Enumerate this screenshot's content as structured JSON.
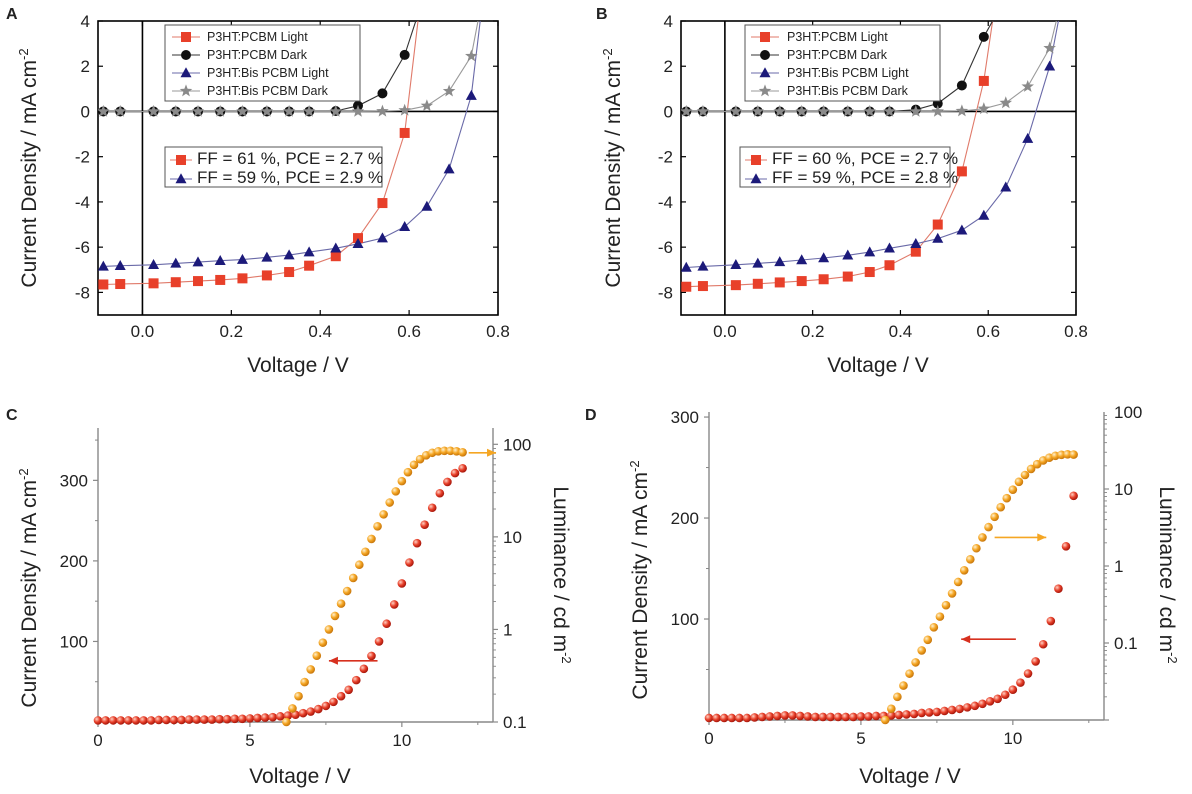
{
  "chart_data": [
    {
      "id": "A",
      "panel_label": "A",
      "type": "line",
      "title": "",
      "xlabel": "Voltage / V",
      "ylabel": "Current Density / mA cm",
      "ylabel_sup": "-2",
      "xlim": [
        -0.1,
        0.8
      ],
      "ylim": [
        -9,
        4
      ],
      "xticks": [
        0.0,
        0.2,
        0.4,
        0.6,
        0.8
      ],
      "xtick_labels": [
        "0.0",
        "0.2",
        "0.4",
        "0.6",
        "0.8"
      ],
      "yticks": [
        -8,
        -6,
        -4,
        -2,
        0,
        2,
        4
      ],
      "ytick_labels": [
        "-8",
        "-6",
        "-4",
        "-2",
        "0",
        "2",
        "4"
      ],
      "series": [
        {
          "name": "P3HT:PCBM Light",
          "marker": "square",
          "color": "#e8402a",
          "line_color": "#e07a6a",
          "x": [
            -0.088,
            -0.05,
            0.025,
            0.075,
            0.125,
            0.175,
            0.225,
            0.28,
            0.33,
            0.375,
            0.435,
            0.485,
            0.54,
            0.59,
            0.62
          ],
          "y": [
            -7.65,
            -7.63,
            -7.6,
            -7.55,
            -7.5,
            -7.45,
            -7.38,
            -7.25,
            -7.1,
            -6.82,
            -6.4,
            -5.6,
            -4.05,
            -0.95,
            4.0
          ]
        },
        {
          "name": "P3HT:PCBM Dark",
          "marker": "circle",
          "color": "#111111",
          "line_color": "#333333",
          "x": [
            -0.088,
            -0.05,
            0.025,
            0.075,
            0.125,
            0.175,
            0.225,
            0.28,
            0.33,
            0.375,
            0.435,
            0.485,
            0.54,
            0.59,
            0.615
          ],
          "y": [
            0,
            0,
            0,
            0,
            0,
            0,
            0,
            0,
            0,
            0,
            0.02,
            0.25,
            0.8,
            2.5,
            4.0
          ]
        },
        {
          "name": "P3HT:Bis PCBM Light",
          "marker": "triangle",
          "color": "#1c1a7a",
          "line_color": "#6a6aa8",
          "x": [
            -0.088,
            -0.05,
            0.025,
            0.075,
            0.125,
            0.175,
            0.225,
            0.28,
            0.33,
            0.375,
            0.435,
            0.485,
            0.54,
            0.59,
            0.64,
            0.69,
            0.74,
            0.76
          ],
          "y": [
            -6.85,
            -6.82,
            -6.78,
            -6.72,
            -6.66,
            -6.6,
            -6.55,
            -6.45,
            -6.35,
            -6.22,
            -6.05,
            -5.85,
            -5.6,
            -5.1,
            -4.2,
            -2.55,
            0.7,
            4.0
          ]
        },
        {
          "name": "P3HT:Bis PCBM Dark",
          "marker": "star",
          "color": "#8a8a8a",
          "line_color": "#9a9a9a",
          "x": [
            -0.088,
            -0.05,
            0.025,
            0.075,
            0.125,
            0.175,
            0.225,
            0.28,
            0.33,
            0.375,
            0.435,
            0.485,
            0.54,
            0.59,
            0.64,
            0.69,
            0.74,
            0.755
          ],
          "y": [
            0,
            0,
            0,
            0,
            0,
            0,
            0,
            0,
            0,
            0,
            0,
            0,
            0.01,
            0.05,
            0.25,
            0.9,
            2.45,
            4.0
          ]
        }
      ],
      "annotations": [
        "FF = 61 %, PCE = 2.7 %",
        "FF = 59 %, PCE = 2.9 %"
      ]
    },
    {
      "id": "B",
      "panel_label": "B",
      "type": "line",
      "title": "",
      "xlabel": "Voltage / V",
      "ylabel": "Current Density / mA cm",
      "ylabel_sup": "-2",
      "xlim": [
        -0.1,
        0.8
      ],
      "ylim": [
        -9,
        4
      ],
      "xticks": [
        0.0,
        0.2,
        0.4,
        0.6,
        0.8
      ],
      "xtick_labels": [
        "0.0",
        "0.2",
        "0.4",
        "0.6",
        "0.8"
      ],
      "yticks": [
        -8,
        -6,
        -4,
        -2,
        0,
        2,
        4
      ],
      "ytick_labels": [
        "-8",
        "-6",
        "-4",
        "-2",
        "0",
        "2",
        "4"
      ],
      "series": [
        {
          "name": "P3HT:PCBM Light",
          "marker": "square",
          "color": "#e8402a",
          "line_color": "#e07a6a",
          "x": [
            -0.088,
            -0.05,
            0.025,
            0.075,
            0.125,
            0.175,
            0.225,
            0.28,
            0.33,
            0.375,
            0.435,
            0.485,
            0.54,
            0.59,
            0.61
          ],
          "y": [
            -7.75,
            -7.72,
            -7.68,
            -7.62,
            -7.56,
            -7.5,
            -7.42,
            -7.3,
            -7.1,
            -6.8,
            -6.2,
            -5.0,
            -2.65,
            1.35,
            4.0
          ]
        },
        {
          "name": "P3HT:PCBM Dark",
          "marker": "circle",
          "color": "#111111",
          "line_color": "#333333",
          "x": [
            -0.088,
            -0.05,
            0.025,
            0.075,
            0.125,
            0.175,
            0.225,
            0.28,
            0.33,
            0.375,
            0.435,
            0.485,
            0.54,
            0.59,
            0.61
          ],
          "y": [
            0,
            0,
            0,
            0,
            0,
            0,
            0,
            0,
            0,
            0,
            0.08,
            0.35,
            1.15,
            3.3,
            4.0
          ]
        },
        {
          "name": "P3HT:Bis PCBM Light",
          "marker": "triangle",
          "color": "#1c1a7a",
          "line_color": "#6a6aa8",
          "x": [
            -0.088,
            -0.05,
            0.025,
            0.075,
            0.125,
            0.175,
            0.225,
            0.28,
            0.33,
            0.375,
            0.435,
            0.485,
            0.54,
            0.59,
            0.64,
            0.69,
            0.74,
            0.76
          ],
          "y": [
            -6.9,
            -6.85,
            -6.78,
            -6.72,
            -6.65,
            -6.57,
            -6.48,
            -6.36,
            -6.22,
            -6.05,
            -5.85,
            -5.62,
            -5.25,
            -4.6,
            -3.35,
            -1.2,
            2.0,
            4.0
          ]
        },
        {
          "name": "P3HT:Bis PCBM Dark",
          "marker": "star",
          "color": "#8a8a8a",
          "line_color": "#9a9a9a",
          "x": [
            -0.088,
            -0.05,
            0.025,
            0.075,
            0.125,
            0.175,
            0.225,
            0.28,
            0.33,
            0.375,
            0.435,
            0.485,
            0.54,
            0.59,
            0.64,
            0.69,
            0.74,
            0.755
          ],
          "y": [
            0,
            0,
            0,
            0,
            0,
            0,
            0,
            0,
            0,
            0,
            0,
            0,
            0.02,
            0.12,
            0.38,
            1.1,
            2.8,
            4.0
          ]
        }
      ],
      "annotations": [
        "FF = 60 %, PCE = 2.7 %",
        "FF = 59 %, PCE = 2.8 %"
      ]
    },
    {
      "id": "C",
      "panel_label": "C",
      "type": "scatter",
      "title": "",
      "xlabel": "Voltage / V",
      "ylabel": "Current Density / mA cm",
      "ylabel_sup": "-2",
      "y2label": "Luminance / cd m",
      "y2label_sup": "-2",
      "xlim": [
        0,
        13
      ],
      "ylim": [
        0,
        365
      ],
      "y2lim_log": [
        0.1,
        150
      ],
      "xticks": [
        0,
        5,
        10
      ],
      "xtick_labels": [
        "0",
        "5",
        "10"
      ],
      "yticks": [
        100,
        200,
        300
      ],
      "ytick_labels": [
        "100",
        "200",
        "300"
      ],
      "y2ticks": [
        0.1,
        1,
        10,
        100
      ],
      "y2tick_labels": [
        "0.1",
        "1",
        "10",
        "100"
      ],
      "series": [
        {
          "name": "Current Density",
          "axis": "left",
          "color": "#d7301f",
          "x": [
            0,
            0.25,
            0.5,
            0.75,
            1,
            1.25,
            1.5,
            1.75,
            2,
            2.25,
            2.5,
            2.75,
            3,
            3.25,
            3.5,
            3.75,
            4,
            4.25,
            4.5,
            4.75,
            5,
            5.25,
            5.5,
            5.75,
            6,
            6.25,
            6.5,
            6.75,
            7,
            7.25,
            7.5,
            7.75,
            8,
            8.25,
            8.5,
            8.75,
            9,
            9.25,
            9.5,
            9.75,
            10,
            10.25,
            10.5,
            10.75,
            11,
            11.25,
            11.5,
            11.75,
            12
          ],
          "y": [
            2,
            2,
            2,
            2,
            2,
            2,
            2,
            2,
            2.5,
            2.5,
            2.5,
            2.5,
            3,
            3,
            3,
            3,
            3.5,
            3.5,
            4,
            4,
            4.5,
            5,
            5.5,
            6,
            7,
            8,
            9,
            11,
            13,
            16,
            20,
            25,
            32,
            40,
            52,
            66,
            82,
            100,
            122,
            146,
            172,
            198,
            222,
            245,
            266,
            284,
            298,
            309,
            315
          ]
        },
        {
          "name": "Luminance",
          "axis": "right",
          "color": "#f5a623",
          "x": [
            6.2,
            6.4,
            6.6,
            6.8,
            7,
            7.2,
            7.4,
            7.6,
            7.8,
            8,
            8.2,
            8.4,
            8.6,
            8.8,
            9,
            9.2,
            9.4,
            9.6,
            9.8,
            10,
            10.2,
            10.4,
            10.6,
            10.8,
            11,
            11.2,
            11.4,
            11.6,
            11.8,
            12
          ],
          "y": [
            0.1,
            0.14,
            0.19,
            0.27,
            0.37,
            0.52,
            0.72,
            1.0,
            1.4,
            1.9,
            2.6,
            3.6,
            5.0,
            6.9,
            9.5,
            13,
            17.5,
            23.5,
            31,
            40,
            50,
            60,
            69,
            76,
            81,
            84,
            85,
            85,
            84,
            82
          ]
        }
      ],
      "annotations": []
    },
    {
      "id": "D",
      "panel_label": "D",
      "type": "scatter",
      "title": "",
      "xlabel": "Voltage / V",
      "ylabel": "Current Density / mA cm",
      "ylabel_sup": "-2",
      "y2label": "Luminance / cd m",
      "y2label_sup": "-2",
      "xlim": [
        0,
        13
      ],
      "ylim": [
        0,
        305
      ],
      "y2lim_log": [
        0.01,
        100
      ],
      "xticks": [
        0,
        5,
        10
      ],
      "xtick_labels": [
        "0",
        "5",
        "10"
      ],
      "yticks": [
        100,
        200,
        300
      ],
      "ytick_labels": [
        "100",
        "200",
        "300"
      ],
      "y2ticks": [
        0.1,
        1,
        10,
        100
      ],
      "y2tick_labels": [
        "0.1",
        "1",
        "10",
        "100"
      ],
      "series": [
        {
          "name": "Current Density",
          "axis": "left",
          "color": "#d7301f",
          "x": [
            0,
            0.25,
            0.5,
            0.75,
            1,
            1.25,
            1.5,
            1.75,
            2,
            2.25,
            2.5,
            2.75,
            3,
            3.25,
            3.5,
            3.75,
            4,
            4.25,
            4.5,
            4.75,
            5,
            5.25,
            5.5,
            5.75,
            6,
            6.25,
            6.5,
            6.75,
            7,
            7.25,
            7.5,
            7.75,
            8,
            8.25,
            8.5,
            8.75,
            9,
            9.25,
            9.5,
            9.75,
            10,
            10.25,
            10.5,
            10.75,
            11,
            11.25,
            11.5,
            11.75,
            12
          ],
          "y": [
            2,
            2,
            2,
            2,
            2,
            2,
            2.5,
            3,
            3.5,
            4,
            4.5,
            4.5,
            4,
            3.5,
            3,
            3,
            3,
            3,
            3,
            3,
            3.5,
            3.5,
            4,
            4,
            4.5,
            5,
            5.5,
            6,
            7,
            7.5,
            8,
            9,
            10,
            11,
            12.5,
            14,
            16,
            18.5,
            21,
            25,
            30,
            37,
            46,
            58,
            75,
            98,
            130,
            172,
            222
          ]
        },
        {
          "name": "Luminance",
          "axis": "right",
          "color": "#f5a623",
          "x": [
            5.8,
            6.0,
            6.2,
            6.4,
            6.6,
            6.8,
            7.0,
            7.2,
            7.4,
            7.6,
            7.8,
            8.0,
            8.2,
            8.4,
            8.6,
            8.8,
            9.0,
            9.2,
            9.4,
            9.6,
            9.8,
            10.0,
            10.2,
            10.4,
            10.6,
            10.8,
            11.0,
            11.2,
            11.4,
            11.6,
            11.8,
            12.0
          ],
          "y": [
            0.01,
            0.014,
            0.02,
            0.028,
            0.04,
            0.056,
            0.08,
            0.11,
            0.16,
            0.22,
            0.31,
            0.44,
            0.62,
            0.88,
            1.22,
            1.7,
            2.35,
            3.2,
            4.35,
            5.8,
            7.6,
            9.8,
            12.4,
            15.2,
            18.2,
            21,
            23.5,
            25.5,
            27,
            27.8,
            28.2,
            28
          ]
        }
      ],
      "annotations": []
    }
  ]
}
